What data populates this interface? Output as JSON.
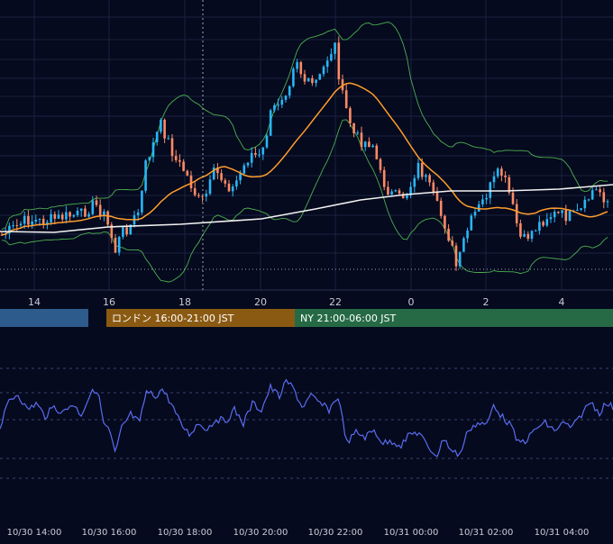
{
  "colors": {
    "background": "#050a1e",
    "grid": "#1a2240",
    "bull_candle": "#29b6f6",
    "bear_candle": "#ff8a65",
    "sma_fast": "#ff9d2b",
    "sma_slow": "#f2f2f2",
    "bollinger": "#4caf50",
    "oscillator": "#5a6cf0",
    "session_tokyo": "#2d5b8c",
    "session_london": "#8b5a12",
    "session_ny": "#256a45"
  },
  "sessions": [
    {
      "label": "",
      "color": "#2d5b8c"
    },
    {
      "label": "ロンドン 16:00-21:00 JST",
      "color": "#8b5a12"
    },
    {
      "label": "NY 21:00-06:00 JST",
      "color": "#256a45"
    }
  ],
  "chart_data": [
    {
      "type": "candlestick",
      "x_ticks": [
        "14",
        "16",
        "18",
        "20",
        "22",
        "0",
        "2",
        "4"
      ],
      "series": [
        {
          "name": "",
          "kind": "candles",
          "trend": "rise to peak near 22:00, drop to low near 1:00, partial recovery"
        },
        {
          "name": "",
          "kind": "fast moving average",
          "values": [
            0.0
          ]
        },
        {
          "name": "",
          "kind": "slow moving average",
          "values": [
            0.0
          ]
        },
        {
          "name": "",
          "kind": "bollinger bands",
          "values": [
            0.0
          ]
        }
      ],
      "marker_lines": [
        {
          "type": "vertical-dotted",
          "at": "18:30"
        },
        {
          "type": "horizontal-dotted",
          "level": "low"
        }
      ],
      "grid": true
    },
    {
      "type": "line",
      "x_ticks": [
        "10/30 14:00",
        "10/30 16:00",
        "10/30 18:00",
        "10/30 20:00",
        "10/30 22:00",
        "10/31 00:00",
        "10/31 02:00",
        "10/31 04:00"
      ],
      "series": [
        {
          "name": "",
          "values": [
            0.0
          ]
        }
      ],
      "grid": true
    }
  ]
}
